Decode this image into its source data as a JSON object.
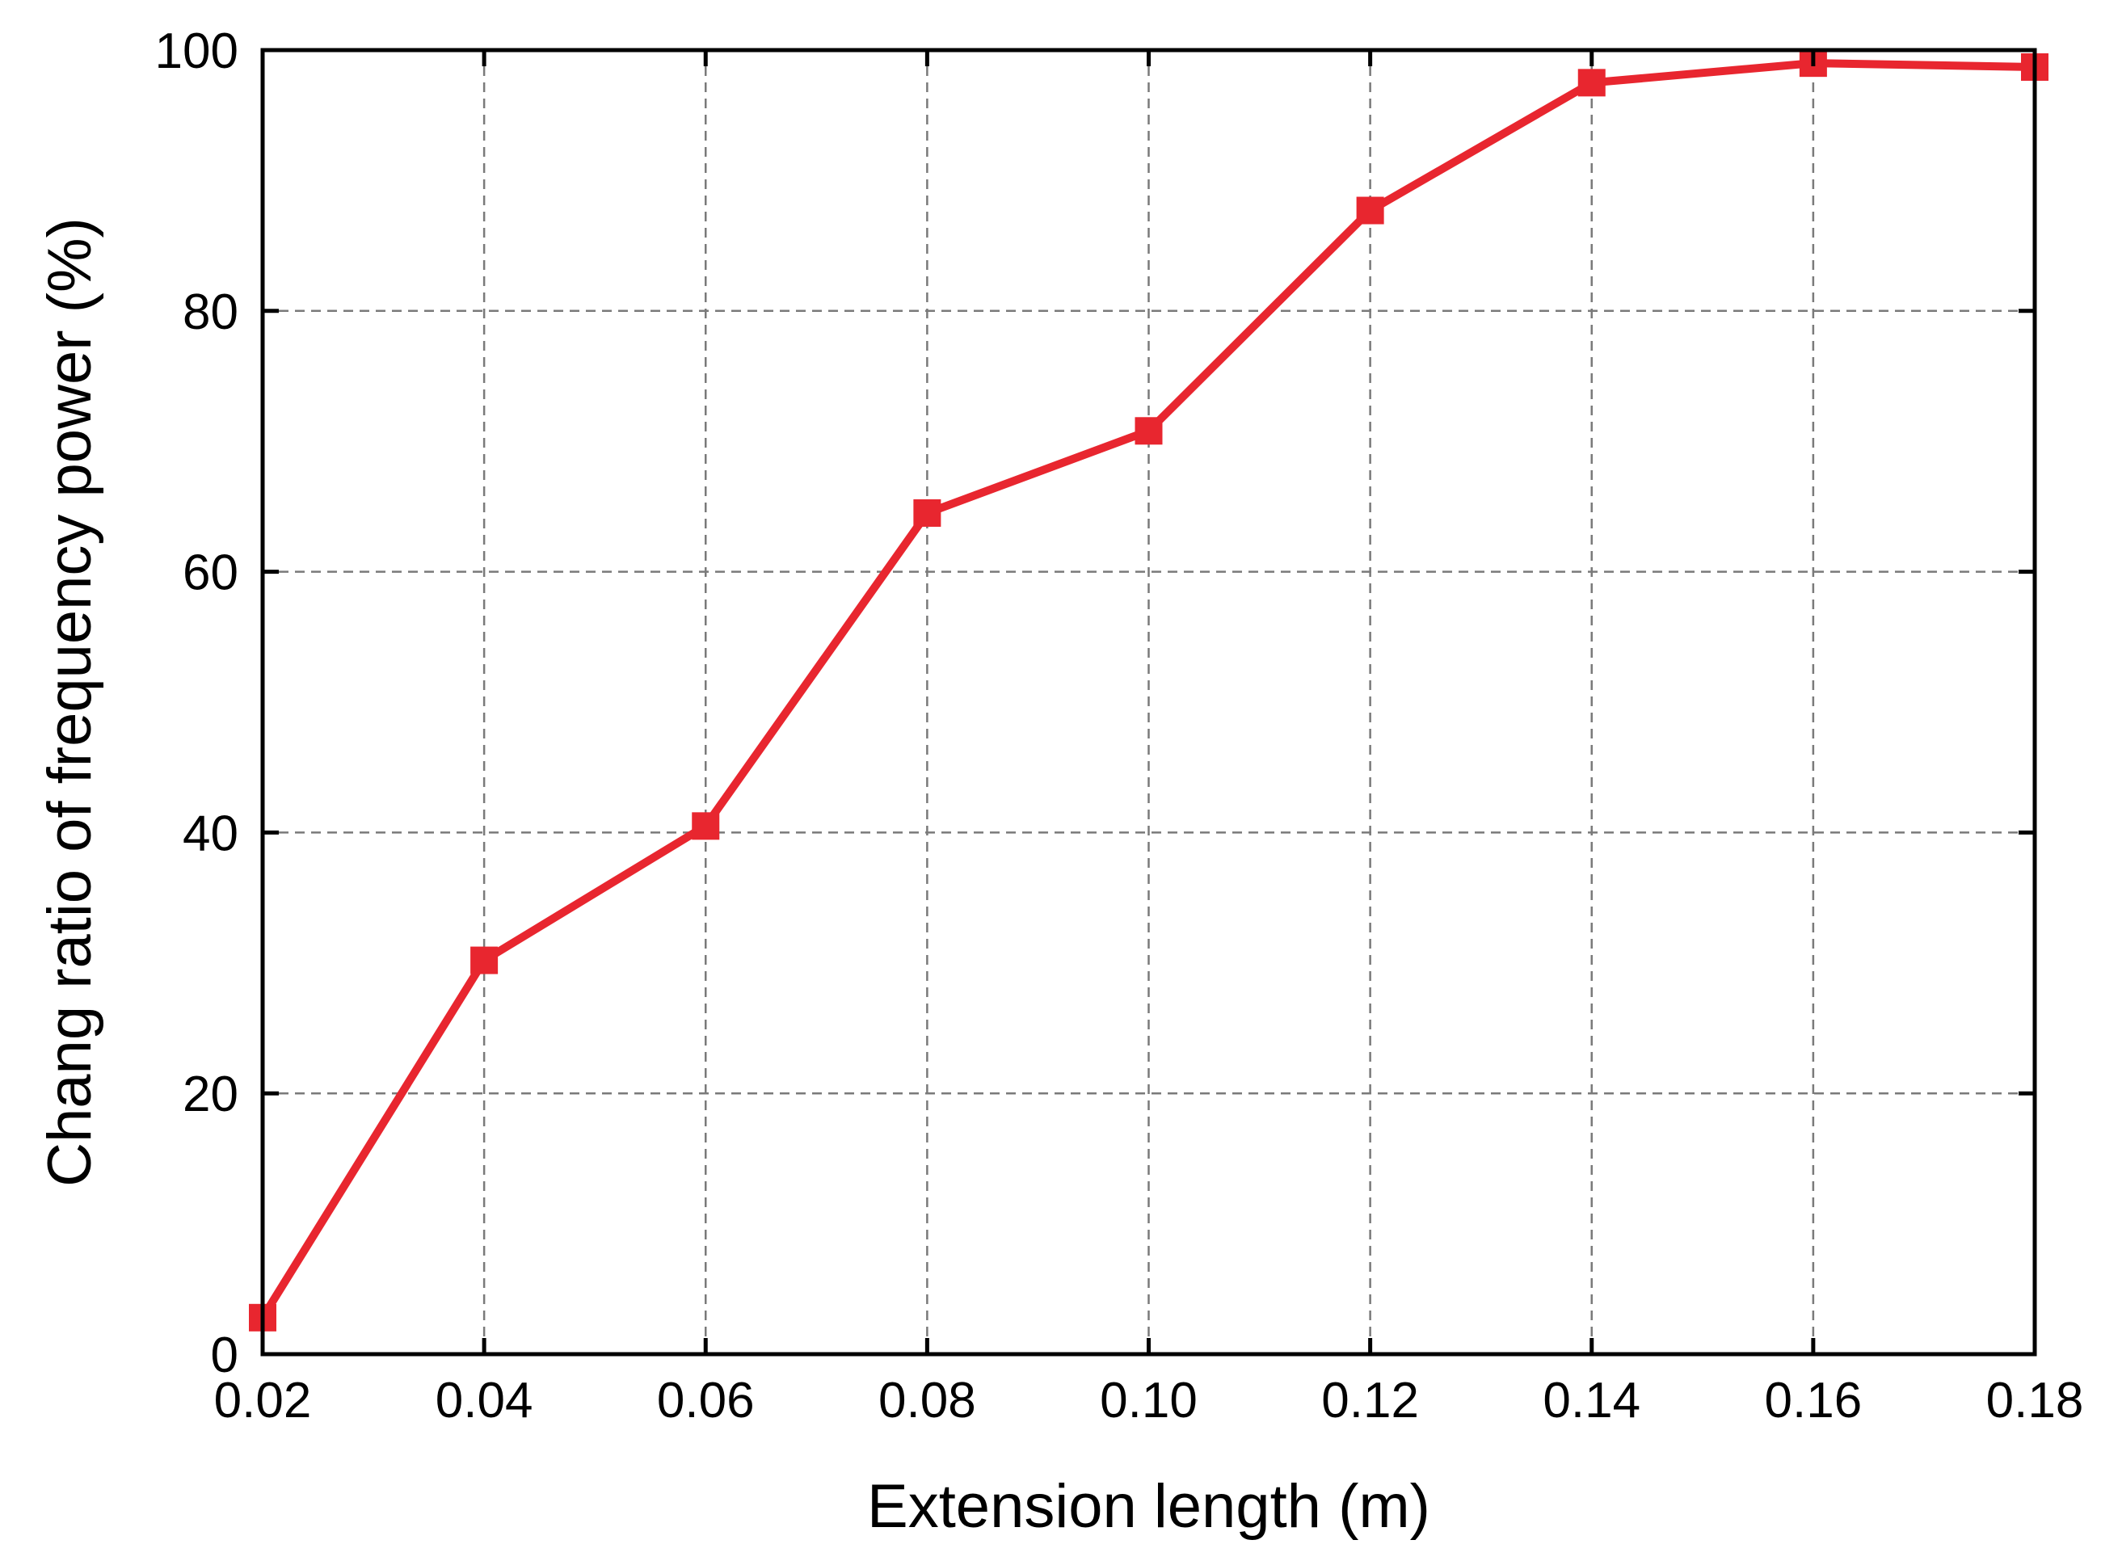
{
  "chart_data": {
    "type": "line",
    "title": "",
    "xlabel": "Extension length (m)",
    "ylabel": "Chang ratio of frequency power (%)",
    "xlim": [
      0.02,
      0.18
    ],
    "ylim": [
      0,
      100
    ],
    "x_ticks": [
      "0.02",
      "0.04",
      "0.06",
      "0.08",
      "0.10",
      "0.12",
      "0.14",
      "0.16",
      "0.18"
    ],
    "y_ticks": [
      "0",
      "20",
      "40",
      "60",
      "80",
      "100"
    ],
    "grid": true,
    "grid_style": "dashed",
    "series": [
      {
        "color": "#e8262f",
        "marker": "square",
        "x": [
          0.02,
          0.04,
          0.06,
          0.08,
          0.1,
          0.12,
          0.14,
          0.16,
          0.18
        ],
        "y": [
          2.8,
          30.2,
          40.5,
          64.5,
          70.8,
          87.7,
          97.5,
          99.0,
          98.7
        ]
      }
    ]
  }
}
